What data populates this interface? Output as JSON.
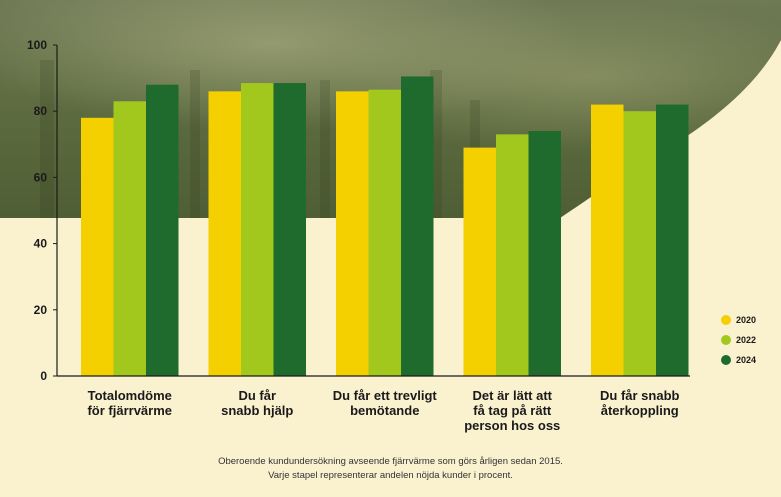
{
  "chart_data": {
    "type": "bar",
    "categories": [
      [
        "Totalomdöme",
        "för fjärrvärme"
      ],
      [
        "Du får",
        "snabb hjälp"
      ],
      [
        "Du får ett trevligt",
        "bemötande"
      ],
      [
        "Det är lätt att",
        "få tag på rätt",
        "person hos oss"
      ],
      [
        "Du får snabb",
        "återkoppling"
      ]
    ],
    "series": [
      {
        "name": "2020",
        "color": "#f5d000",
        "values": [
          78,
          86,
          86,
          69,
          82
        ]
      },
      {
        "name": "2022",
        "color": "#a2c81e",
        "values": [
          83,
          88.5,
          86.5,
          73,
          80
        ]
      },
      {
        "name": "2024",
        "color": "#1f6b2e",
        "values": [
          88,
          88.5,
          90.5,
          74,
          82
        ]
      }
    ],
    "yticks": [
      0,
      20,
      40,
      60,
      80,
      100
    ],
    "ylim": [
      0,
      100
    ],
    "legend_position": "right",
    "grid": false
  },
  "footnote": {
    "line1": "Oberoende kundundersökning avseende fjärrvärme som görs årligen sedan 2015.",
    "line2": "Varje stapel representerar andelen nöjda kunder i procent."
  }
}
